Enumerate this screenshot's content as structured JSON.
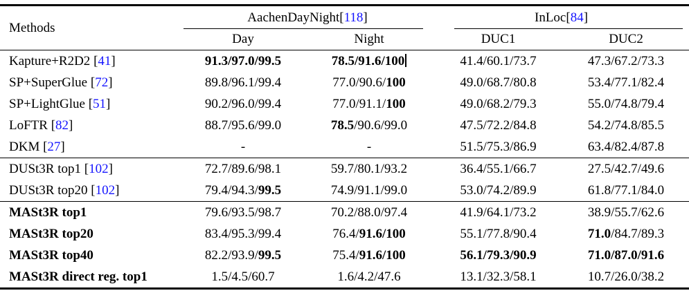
{
  "table": {
    "header": {
      "methods_label": "Methods",
      "cite_open": "[",
      "cite_close": "]",
      "groups": [
        {
          "label": "AachenDayNight",
          "cite": "118",
          "cols": [
            "Day",
            "Night"
          ]
        },
        {
          "label": "InLoc",
          "cite": "84",
          "cols": [
            "DUC1",
            "DUC2"
          ]
        }
      ]
    },
    "cite_color": "#1414ff",
    "sections": [
      {
        "rows": [
          {
            "method": {
              "label": "Kapture+R2D2",
              "cite": "41",
              "bold": false
            },
            "cells": [
              {
                "segs": [
                  {
                    "t": "91.3/97.0/99.5",
                    "b": true
                  }
                ]
              },
              {
                "segs": [
                  {
                    "t": "78.5/91.6/100",
                    "b": true
                  }
                ],
                "caret": true
              },
              {
                "segs": [
                  {
                    "t": "41.4/60.1/73.7"
                  }
                ]
              },
              {
                "segs": [
                  {
                    "t": "47.3/67.2/73.3"
                  }
                ]
              }
            ]
          },
          {
            "method": {
              "label": "SP+SuperGlue",
              "cite": "72",
              "bold": false
            },
            "cells": [
              {
                "segs": [
                  {
                    "t": "89.8/96.1/99.4"
                  }
                ]
              },
              {
                "segs": [
                  {
                    "t": "77.0/90.6/"
                  },
                  {
                    "t": "100",
                    "b": true
                  }
                ]
              },
              {
                "segs": [
                  {
                    "t": "49.0/68.7/80.8"
                  }
                ]
              },
              {
                "segs": [
                  {
                    "t": "53.4/77.1/82.4"
                  }
                ]
              }
            ]
          },
          {
            "method": {
              "label": "SP+LightGlue",
              "cite": "51",
              "bold": false
            },
            "cells": [
              {
                "segs": [
                  {
                    "t": "90.2/96.0/99.4"
                  }
                ]
              },
              {
                "segs": [
                  {
                    "t": "77.0/91.1/"
                  },
                  {
                    "t": "100",
                    "b": true
                  }
                ]
              },
              {
                "segs": [
                  {
                    "t": "49.0/68.2/79.3"
                  }
                ]
              },
              {
                "segs": [
                  {
                    "t": "55.0/74.8/79.4"
                  }
                ]
              }
            ]
          },
          {
            "method": {
              "label": "LoFTR",
              "cite": "82",
              "bold": false
            },
            "cells": [
              {
                "segs": [
                  {
                    "t": "88.7/95.6/99.0"
                  }
                ]
              },
              {
                "segs": [
                  {
                    "t": "78.5",
                    "b": true
                  },
                  {
                    "t": "/90.6/99.0"
                  }
                ]
              },
              {
                "segs": [
                  {
                    "t": "47.5/72.2/84.8"
                  }
                ]
              },
              {
                "segs": [
                  {
                    "t": "54.2/74.8/85.5"
                  }
                ]
              }
            ]
          },
          {
            "method": {
              "label": "DKM",
              "cite": "27",
              "bold": false
            },
            "cells": [
              {
                "segs": [
                  {
                    "t": "-"
                  }
                ]
              },
              {
                "segs": [
                  {
                    "t": "-"
                  }
                ]
              },
              {
                "segs": [
                  {
                    "t": "51.5/75.3/86.9"
                  }
                ]
              },
              {
                "segs": [
                  {
                    "t": "63.4/82.4/87.8"
                  }
                ]
              }
            ]
          }
        ]
      },
      {
        "rows": [
          {
            "method": {
              "label": "DUSt3R top1",
              "cite": "102",
              "bold": false
            },
            "cells": [
              {
                "segs": [
                  {
                    "t": "72.7/89.6/98.1"
                  }
                ]
              },
              {
                "segs": [
                  {
                    "t": "59.7/80.1/93.2"
                  }
                ]
              },
              {
                "segs": [
                  {
                    "t": "36.4/55.1/66.7"
                  }
                ]
              },
              {
                "segs": [
                  {
                    "t": "27.5/42.7/49.6"
                  }
                ]
              }
            ]
          },
          {
            "method": {
              "label": "DUSt3R top20",
              "cite": "102",
              "bold": false
            },
            "cells": [
              {
                "segs": [
                  {
                    "t": "79.4/94.3/"
                  },
                  {
                    "t": "99.5",
                    "b": true
                  }
                ]
              },
              {
                "segs": [
                  {
                    "t": "74.9/91.1/99.0"
                  }
                ]
              },
              {
                "segs": [
                  {
                    "t": "53.0/74.2/89.9"
                  }
                ]
              },
              {
                "segs": [
                  {
                    "t": "61.8/77.1/84.0"
                  }
                ]
              }
            ]
          }
        ]
      },
      {
        "rows": [
          {
            "method": {
              "label": "MASt3R top1",
              "cite": null,
              "bold": true
            },
            "cells": [
              {
                "segs": [
                  {
                    "t": "79.6/93.5/98.7"
                  }
                ]
              },
              {
                "segs": [
                  {
                    "t": "70.2/88.0/97.4"
                  }
                ]
              },
              {
                "segs": [
                  {
                    "t": "41.9/64.1/73.2"
                  }
                ]
              },
              {
                "segs": [
                  {
                    "t": "38.9/55.7/62.6"
                  }
                ]
              }
            ]
          },
          {
            "method": {
              "label": "MASt3R top20",
              "cite": null,
              "bold": true
            },
            "cells": [
              {
                "segs": [
                  {
                    "t": "83.4/95.3/99.4"
                  }
                ]
              },
              {
                "segs": [
                  {
                    "t": "76.4/"
                  },
                  {
                    "t": "91.6/100",
                    "b": true
                  }
                ]
              },
              {
                "segs": [
                  {
                    "t": "55.1/77.8/90.4"
                  }
                ]
              },
              {
                "segs": [
                  {
                    "t": "71.0",
                    "b": true
                  },
                  {
                    "t": "/84.7/89.3"
                  }
                ]
              }
            ]
          },
          {
            "method": {
              "label": "MASt3R top40",
              "cite": null,
              "bold": true
            },
            "cells": [
              {
                "segs": [
                  {
                    "t": "82.2/93.9/"
                  },
                  {
                    "t": "99.5",
                    "b": true
                  }
                ]
              },
              {
                "segs": [
                  {
                    "t": "75.4/"
                  },
                  {
                    "t": "91.6/100",
                    "b": true
                  }
                ]
              },
              {
                "segs": [
                  {
                    "t": "56.1/79.3/90.9",
                    "b": true
                  }
                ]
              },
              {
                "segs": [
                  {
                    "t": "71.0/87.0/91.6",
                    "b": true
                  }
                ]
              }
            ]
          },
          {
            "method": {
              "label": "MASt3R direct reg. top1",
              "cite": null,
              "bold": true
            },
            "cells": [
              {
                "segs": [
                  {
                    "t": "1.5/4.5/60.7"
                  }
                ]
              },
              {
                "segs": [
                  {
                    "t": "1.6/4.2/47.6"
                  }
                ]
              },
              {
                "segs": [
                  {
                    "t": "13.1/32.3/58.1"
                  }
                ]
              },
              {
                "segs": [
                  {
                    "t": "10.7/26.0/38.2"
                  }
                ]
              }
            ]
          }
        ]
      }
    ]
  }
}
